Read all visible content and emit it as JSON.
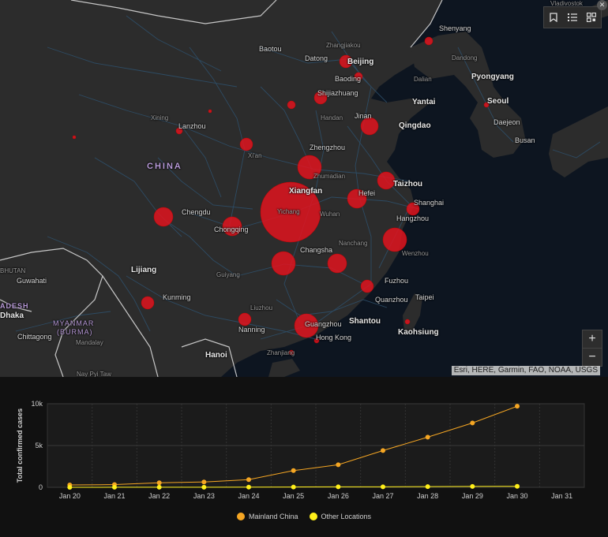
{
  "map": {
    "attribution": "Esri, HERE, Garmin, FAO, NOAA, USGS",
    "toolbar": {
      "bookmark_icon": "bookmark-icon",
      "list_icon": "list-icon",
      "qr_icon": "qr-grid-icon"
    },
    "zoom": {
      "in_label": "+",
      "out_label": "−"
    },
    "colors": {
      "bubble": "#e0141e",
      "land": "#2c2c2c",
      "sea": "#0d1520",
      "roads": "#2e4f6a"
    },
    "labels": {
      "vladivostok": "Vladivostok",
      "shenyang": "Shenyang",
      "baotou": "Baotou",
      "zhangjiakou": "Zhangjiakou",
      "datong": "Datong",
      "beijing": "Beijing",
      "dandong": "Dandong",
      "baoding": "Baoding",
      "dalian": "Dalian",
      "pyongyang": "Pyongyang",
      "shijiazhuang": "Shijiazhuang",
      "yantai": "Yantai",
      "seoul": "Seoul",
      "xining": "Xining",
      "lanzhou": "Lanzhou",
      "handan": "Handan",
      "jinan": "Jinan",
      "qingdao": "Qingdao",
      "daejeon": "Daejeon",
      "busan": "Busan",
      "xian": "Xi'an",
      "zhengzhou": "Zhengzhou",
      "china": "CHINA",
      "zhumadian": "Zhumadian",
      "xiangfan": "Xiangfan",
      "hefei": "Hefei",
      "taizhou": "Taizhou",
      "shanghai": "Shanghai",
      "chengdu": "Chengdu",
      "yichang": "Yichang",
      "wuhan": "Wuhan",
      "hangzhou": "Hangzhou",
      "chongqing": "Chongqing",
      "nanchang": "Nanchang",
      "changsha": "Changsha",
      "wenzhou": "Wenzhou",
      "bhutan": "BHUTAN",
      "lijiang": "Lijiang",
      "guwahati": "Guwahati",
      "guiyang": "Guiyang",
      "fuzhou": "Fuzhou",
      "quanzhou": "Quanzhou",
      "taipei": "Taipei",
      "bangladesh": "ADESH",
      "dhaka": "Dhaka",
      "kunming": "Kunming",
      "liuzhou": "Liuzhou",
      "myanmar": "MYANMAR",
      "burma": "(BURMA)",
      "shantou": "Shantou",
      "guangzhou": "Guangzhou",
      "kaohsiung": "Kaohsiung",
      "nanning": "Nanning",
      "hongkong": "Hong Kong",
      "chittagong": "Chittagong",
      "mandalay": "Mandalay",
      "hanoi": "Hanoi",
      "zhanjiang": "Zhanjiang",
      "naypyitaw": "Nay Pyi Taw"
    }
  },
  "chart_data": {
    "type": "line",
    "categories": [
      "Jan 20",
      "Jan 21",
      "Jan 22",
      "Jan 23",
      "Jan 24",
      "Jan 25",
      "Jan 26",
      "Jan 27",
      "Jan 28",
      "Jan 29",
      "Jan 30",
      "Jan 31"
    ],
    "series": [
      {
        "name": "Mainland China",
        "color": "#f5a623",
        "values": [
          278,
          326,
          547,
          639,
          916,
          2000,
          2700,
          4400,
          6000,
          7700,
          9700,
          null
        ]
      },
      {
        "name": "Other Locations",
        "color": "#ffef1a",
        "values": [
          4,
          6,
          8,
          14,
          25,
          40,
          57,
          64,
          87,
          105,
          118,
          null
        ]
      }
    ],
    "ylabel": "Total confirmed cases",
    "yticks": [
      "0",
      "5k",
      "10k"
    ],
    "ylim": [
      0,
      10000
    ],
    "grid": true,
    "legend": "bottom-center"
  }
}
